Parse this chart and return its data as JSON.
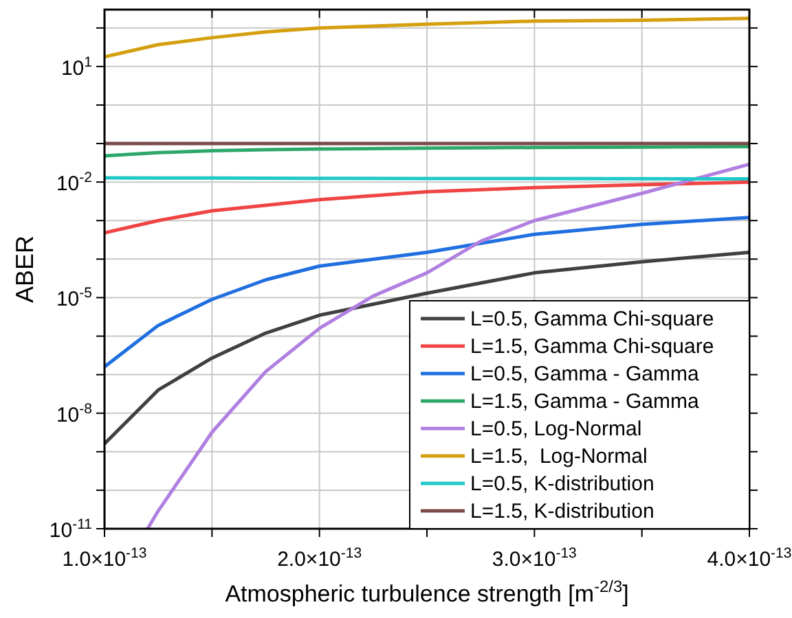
{
  "chart_data": {
    "type": "line",
    "xlabel": "Atmospheric turbulence strength [m$^{-2/3}$]",
    "ylabel": "ABER",
    "log": "y",
    "grid": true,
    "legend": "bottom right",
    "line_style": "solid",
    "xlim": [
      1e-13,
      4e-13
    ],
    "xticks": [
      {
        "value": 1e-13,
        "label": "1.0×10$^{-13}$"
      },
      {
        "value": 1.5e-13,
        "label": null
      },
      {
        "value": 2e-13,
        "label": "2.0×10$^{-13}$"
      },
      {
        "value": 2.5e-13,
        "label": null
      },
      {
        "value": 3e-13,
        "label": "3.0×10$^{-13}$"
      },
      {
        "value": 3.5e-13,
        "label": null
      },
      {
        "value": 4e-13,
        "label": "4.0×10$^{-13}$"
      }
    ],
    "ylim": [
      1e-11,
      300
    ],
    "yticks": [
      {
        "value": 1e-11,
        "label": "10$^{-11}$"
      },
      {
        "value": 1e-10,
        "label": null
      },
      {
        "value": 1e-09,
        "label": null
      },
      {
        "value": 1e-08,
        "label": "10$^{-8}$"
      },
      {
        "value": 1e-07,
        "label": null
      },
      {
        "value": 1e-06,
        "label": null
      },
      {
        "value": 1e-05,
        "label": "10$^{-5}$"
      },
      {
        "value": 0.0001,
        "label": null
      },
      {
        "value": 0.001,
        "label": null
      },
      {
        "value": 0.01,
        "label": "10$^{-2}$"
      },
      {
        "value": 0.1,
        "label": null
      },
      {
        "value": 1,
        "label": null
      },
      {
        "value": 10,
        "label": "10$^{1}$"
      },
      {
        "value": 100,
        "label": null
      }
    ],
    "x": [
      1e-13,
      1.25e-13,
      1.5e-13,
      1.75e-13,
      2e-13,
      2.5e-13,
      3e-13,
      3.5e-13,
      4e-13
    ],
    "series": [
      {
        "name": "L=0.5, Gamma Chi-square",
        "color": "#404040",
        "values": [
          1.6e-09,
          4e-08,
          2.7e-07,
          1.2e-06,
          3.5e-06,
          1.3e-05,
          4.4e-05,
          8.5e-05,
          0.00015
        ]
      },
      {
        "name": "L=1.5, Gamma Chi-square",
        "color": "#f04444",
        "values": [
          0.00048,
          0.001,
          0.0018,
          0.0025,
          0.0035,
          0.0056,
          0.0072,
          0.0085,
          0.01
        ]
      },
      {
        "name": "L=0.5, Gamma - Gamma",
        "color": "#1f6fe0",
        "values": [
          1.6e-07,
          1.9e-06,
          9e-06,
          2.9e-05,
          6.6e-05,
          0.00015,
          0.00044,
          0.0008,
          0.0012
        ]
      },
      {
        "name": "L=1.5, Gamma - Gamma",
        "color": "#2ea86a",
        "values": [
          0.048,
          0.058,
          0.065,
          0.069,
          0.072,
          0.076,
          0.079,
          0.081,
          0.083
        ]
      },
      {
        "name": "L=0.5, Log-Normal",
        "color": "#b07fe0",
        "x": [
          1.2e-13,
          1.25e-13,
          1.5e-13,
          1.75e-13,
          2e-13,
          2.25e-13,
          2.5e-13,
          2.75e-13,
          3e-13,
          3.5e-13,
          4e-13
        ],
        "values": [
          1e-11,
          2.9e-11,
          3.2e-09,
          1.2e-07,
          1.6e-06,
          1.1e-05,
          4.4e-05,
          0.00029,
          0.001,
          0.0051,
          0.029
        ]
      },
      {
        "name": "L=1.5,  Log-Normal",
        "color": "#d4a010",
        "values": [
          17.8,
          37,
          56,
          79,
          100,
          126,
          151,
          158,
          178
        ]
      },
      {
        "name": "L=0.5, K-distribution",
        "color": "#20c8c8",
        "values": [
          0.0129,
          0.0128,
          0.0127,
          0.0126,
          0.0125,
          0.0124,
          0.0123,
          0.0122,
          0.0121
        ]
      },
      {
        "name": "L=1.5, K-distribution",
        "color": "#7a4a4a",
        "values": [
          0.1,
          0.1,
          0.1,
          0.1,
          0.1,
          0.1,
          0.1,
          0.1,
          0.1
        ]
      }
    ]
  }
}
